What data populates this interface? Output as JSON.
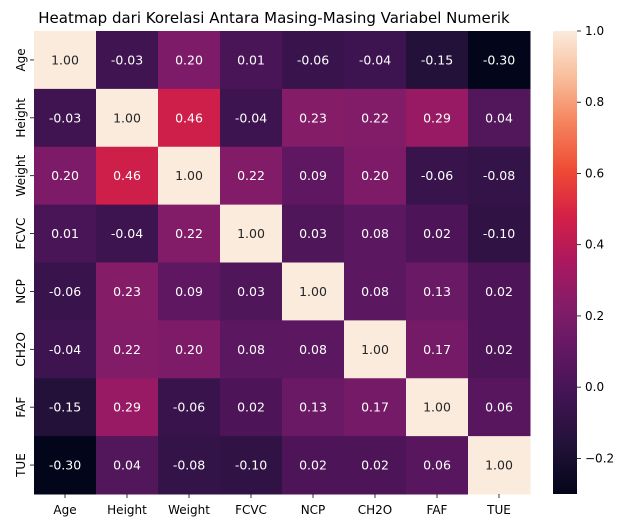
{
  "chart_data": {
    "type": "heatmap",
    "title": "Heatmap dari Korelasi Antara Masing-Masing Variabel Numerik",
    "x_labels": [
      "Age",
      "Height",
      "Weight",
      "FCVC",
      "NCP",
      "CH2O",
      "FAF",
      "TUE"
    ],
    "y_labels": [
      "Age",
      "Height",
      "Weight",
      "FCVC",
      "NCP",
      "CH2O",
      "FAF",
      "TUE"
    ],
    "values": [
      [
        1.0,
        -0.03,
        0.2,
        0.01,
        -0.06,
        -0.04,
        -0.15,
        -0.3
      ],
      [
        -0.03,
        1.0,
        0.46,
        -0.04,
        0.23,
        0.22,
        0.29,
        0.04
      ],
      [
        0.2,
        0.46,
        1.0,
        0.22,
        0.09,
        0.2,
        -0.06,
        -0.08
      ],
      [
        0.01,
        -0.04,
        0.22,
        1.0,
        0.03,
        0.08,
        0.02,
        -0.1
      ],
      [
        -0.06,
        0.23,
        0.09,
        0.03,
        1.0,
        0.08,
        0.13,
        0.02
      ],
      [
        -0.04,
        0.22,
        0.2,
        0.08,
        0.08,
        1.0,
        0.17,
        0.02
      ],
      [
        -0.15,
        0.29,
        -0.06,
        0.02,
        0.13,
        0.17,
        1.0,
        0.06
      ],
      [
        -0.3,
        0.04,
        -0.08,
        -0.1,
        0.02,
        0.02,
        0.06,
        1.0
      ]
    ],
    "value_format": "0.00",
    "colorbar": {
      "min": -0.3,
      "max": 1.0,
      "ticks": [
        "1.0",
        "0.8",
        "0.6",
        "0.4",
        "0.2",
        "0.0",
        "−0.2"
      ],
      "colormap": "rocket",
      "tick_values": [
        1.0,
        0.8,
        0.6,
        0.4,
        0.2,
        0.0,
        -0.2
      ]
    },
    "grid": false,
    "legend": "none"
  }
}
